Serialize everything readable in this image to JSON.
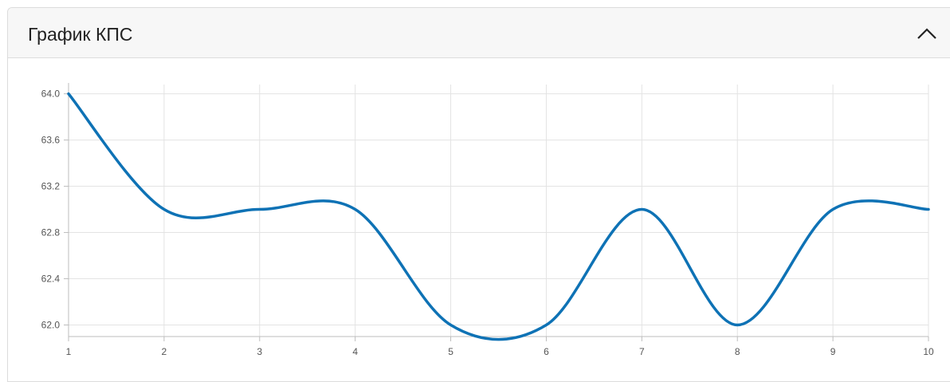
{
  "panel": {
    "title": "График КПС",
    "collapse_icon": "chevron-up-icon"
  },
  "colors": {
    "line": "#0e72b5",
    "grid": "#e3e3e3",
    "axis": "#bdbdbd",
    "tick_text": "#555555"
  },
  "chart_data": {
    "type": "line",
    "title": "",
    "xlabel": "",
    "ylabel": "",
    "x": [
      1,
      2,
      3,
      4,
      5,
      6,
      7,
      8,
      9,
      10
    ],
    "series": [
      {
        "values": [
          64.0,
          63.0,
          63.0,
          63.0,
          62.0,
          62.0,
          63.0,
          62.0,
          63.0,
          63.0
        ]
      }
    ],
    "x_ticks": [
      "1",
      "2",
      "3",
      "4",
      "5",
      "6",
      "7",
      "8",
      "9",
      "10"
    ],
    "y_ticks": [
      "62.0",
      "62.4",
      "62.8",
      "63.2",
      "63.6",
      "64.0"
    ],
    "xlim": [
      1,
      10
    ],
    "ylim": [
      61.9,
      64.08
    ],
    "grid": true,
    "smooth": true
  }
}
